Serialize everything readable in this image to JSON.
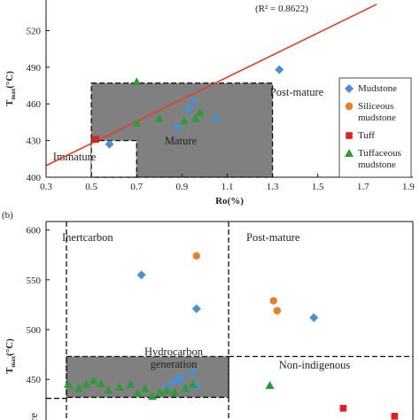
{
  "colors": {
    "mudstone": "#4a8fd4",
    "siliceous": "#e87d2a",
    "tuff": "#e02020",
    "tuffaceous": "#2e9a3a",
    "trend": "#e0402a",
    "shade": "#808080"
  },
  "chart_data": [
    {
      "type": "scatter",
      "title": "",
      "xlabel": "Ro(%)",
      "ylabel_main": "T",
      "ylabel_sub": "max",
      "ylabel_unit": "(°C)",
      "xlim": [
        0.3,
        1.92
      ],
      "ylim": [
        400,
        545
      ],
      "xticks": [
        "0.3",
        "0.5",
        "0.7",
        "0.9",
        "1.1",
        "1.3",
        "1.5",
        "1.7",
        "1.9"
      ],
      "yticks": [
        "400",
        "430",
        "460",
        "490",
        "520"
      ],
      "fit_r2": "(R² = 0.8622)",
      "trend": {
        "x": [
          0.3,
          1.76
        ],
        "y": [
          409.5,
          541.5
        ]
      },
      "regions": {
        "immature": "Immature",
        "mature": "Mature",
        "post_mature": "Post-mature"
      },
      "mature_box": {
        "x": [
          0.5,
          1.3
        ],
        "y": [
          400,
          477
        ]
      },
      "immature_box": {
        "x": [
          0.5,
          0.7
        ],
        "y": [
          400,
          430
        ]
      },
      "legend": [
        {
          "key": "mudstone",
          "marker": "diamond",
          "lines": [
            "Mudstone"
          ]
        },
        {
          "key": "siliceous",
          "marker": "circle",
          "lines": [
            "Siliceous",
            "mudstone"
          ]
        },
        {
          "key": "tuff",
          "marker": "square",
          "lines": [
            "Tuff"
          ]
        },
        {
          "key": "tuffaceous",
          "marker": "triangle",
          "lines": [
            "Tuffaceous",
            "mudstone"
          ]
        }
      ],
      "series": [
        {
          "key": "mudstone",
          "marker": "diamond",
          "points": [
            [
              0.58,
              427
            ],
            [
              0.88,
              441
            ],
            [
              0.95,
              462
            ],
            [
              0.93,
              455
            ],
            [
              1.05,
              448
            ],
            [
              1.33,
              488
            ]
          ]
        },
        {
          "key": "tuff",
          "marker": "square",
          "points": [
            [
              0.52,
              431
            ]
          ]
        },
        {
          "key": "tuffaceous",
          "marker": "triangle",
          "points": [
            [
              0.7,
              478
            ],
            [
              0.7,
              444
            ],
            [
              0.8,
              448
            ],
            [
              0.91,
              446
            ],
            [
              0.96,
              448
            ],
            [
              0.98,
              453
            ]
          ]
        }
      ]
    },
    {
      "type": "scatter",
      "panel_label": "(b)",
      "ylabel_main": "T",
      "ylabel_sub": "max",
      "ylabel_unit": "(°C)",
      "ylim": [
        395,
        605
      ],
      "yticks": [
        "400",
        "450",
        "500",
        "550",
        "600"
      ],
      "regions": {
        "inertcarbon": "Inertcarbon",
        "post_mature": "Post-mature",
        "hydrocarbon_1": "Hydrocarbon",
        "hydrocarbon_2": "generation",
        "non_indigenous": "Non-indigenous",
        "immature_partial": "ature"
      },
      "series": [
        {
          "key": "mudstone",
          "marker": "diamond",
          "points": [
            [
              0.26,
              555
            ],
            [
              0.41,
              521
            ],
            [
              0.73,
              512
            ],
            [
              0.33,
              443
            ],
            [
              0.35,
              448
            ],
            [
              0.36,
              450
            ],
            [
              0.37,
              452
            ],
            [
              0.4,
              457
            ],
            [
              0.38,
              440
            ],
            [
              0.41,
              443
            ]
          ]
        },
        {
          "key": "siliceous",
          "marker": "circle",
          "points": [
            [
              0.41,
              574
            ],
            [
              0.62,
              529
            ],
            [
              0.63,
              519
            ]
          ]
        },
        {
          "key": "tuff",
          "marker": "square",
          "points": [
            [
              0.81,
              421
            ],
            [
              0.95,
              413
            ]
          ]
        },
        {
          "key": "tuffaceous",
          "marker": "triangle",
          "points": [
            [
              0.06,
              445
            ],
            [
              0.09,
              441
            ],
            [
              0.11,
              445
            ],
            [
              0.13,
              449
            ],
            [
              0.15,
              446
            ],
            [
              0.17,
              439
            ],
            [
              0.2,
              442
            ],
            [
              0.23,
              445
            ],
            [
              0.25,
              436
            ],
            [
              0.27,
              441
            ],
            [
              0.29,
              433
            ],
            [
              0.31,
              437
            ],
            [
              0.33,
              439
            ],
            [
              0.35,
              437
            ],
            [
              0.38,
              441
            ],
            [
              0.4,
              445
            ],
            [
              0.61,
              444
            ]
          ]
        }
      ]
    }
  ]
}
